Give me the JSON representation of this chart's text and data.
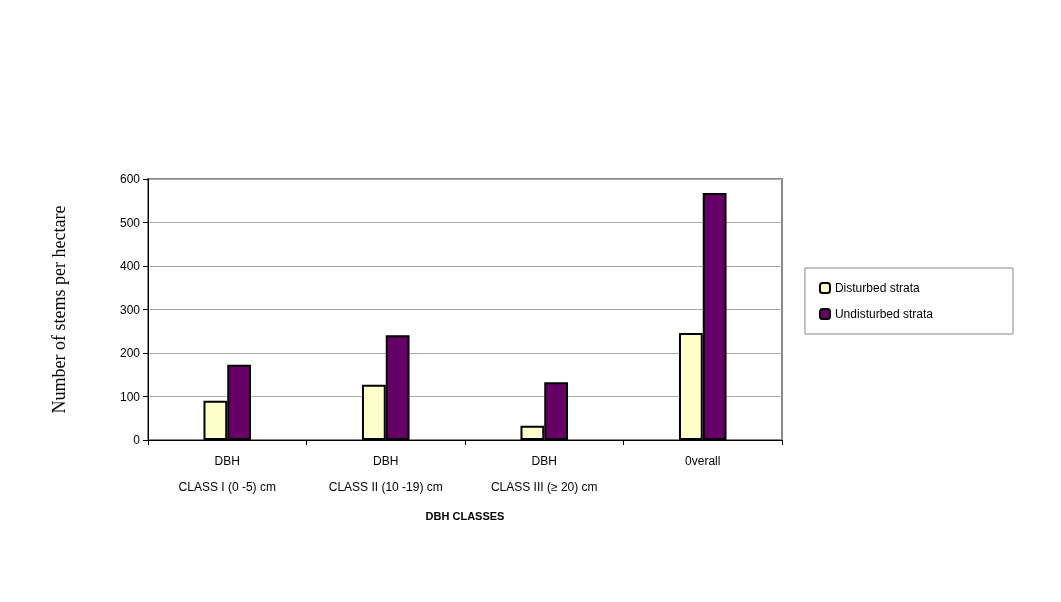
{
  "chart_data": {
    "type": "bar",
    "categories": [
      "DBH\nCLASS I (0 -5) cm",
      "DBH\nCLASS II (10 -19) cm",
      "DBH\nCLASS III (≥ 20) cm",
      "0verall"
    ],
    "series": [
      {
        "name": "Disturbed strata",
        "color": "#ffffcc",
        "values": [
          90,
          127,
          33,
          246
        ]
      },
      {
        "name": "Undisturbed strata",
        "color": "#660066",
        "values": [
          173,
          241,
          133,
          568
        ]
      }
    ],
    "xlabel": "DBH CLASSES",
    "ylabel": "Number of stems per hectare",
    "ylim": [
      0,
      600
    ],
    "yticks": [
      0,
      100,
      200,
      300,
      400,
      500,
      600
    ],
    "grid": "y",
    "legend": "right"
  }
}
